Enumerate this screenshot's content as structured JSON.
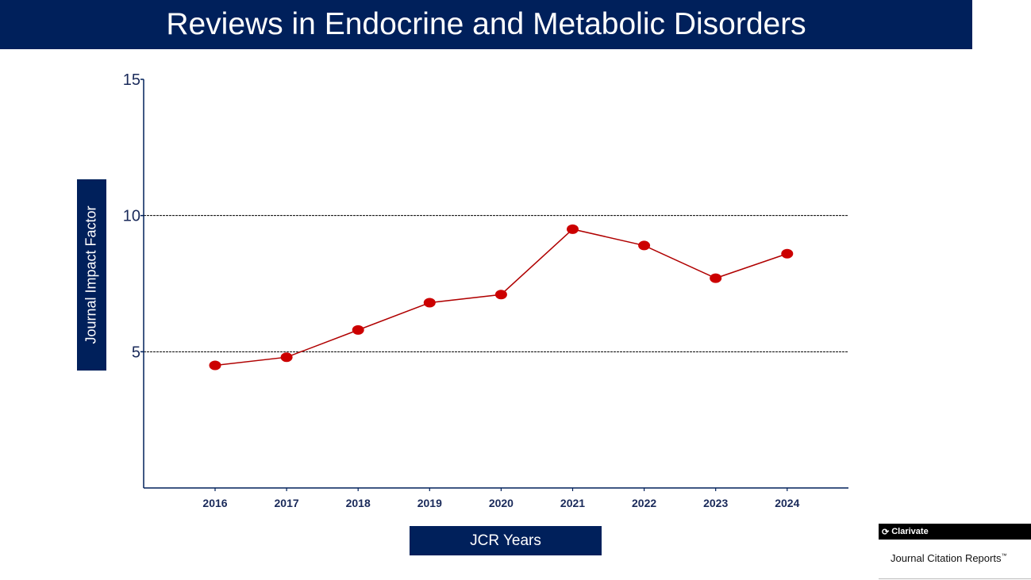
{
  "chart_data": {
    "type": "line",
    "title": "Reviews in Endocrine and Metabolic Disorders",
    "xlabel": "JCR Years",
    "ylabel": "Journal Impact Factor",
    "categories": [
      "2016",
      "2017",
      "2018",
      "2019",
      "2020",
      "2021",
      "2022",
      "2023",
      "2024"
    ],
    "series": [
      {
        "values": [
          4.5,
          4.8,
          5.8,
          6.8,
          7.1,
          9.5,
          8.9,
          7.7,
          8.6
        ]
      }
    ],
    "ylim": [
      0,
      15
    ],
    "yticks": [
      "5",
      "10",
      "15"
    ],
    "gridlines_at": [
      5,
      10
    ],
    "grid": "dashed horizontal at 5 and 10",
    "colors": {
      "line": "#b00000",
      "marker": "#cc0000",
      "frame": "#00205b",
      "grid": "#000000"
    }
  },
  "branding": {
    "company": "Clarivate",
    "product": "Journal Citation Reports",
    "product_mark": "™"
  }
}
